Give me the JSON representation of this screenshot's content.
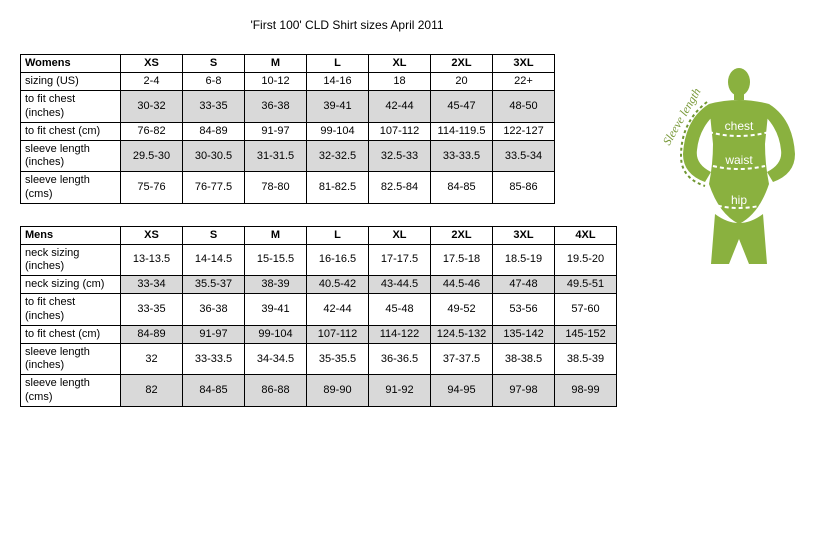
{
  "title": "'First 100' CLD Shirt sizes April 2011",
  "colors": {
    "figure_green": "#8ab13f",
    "figure_green_dark": "#6f9630",
    "shade": "#d9d9d9",
    "text": "#000000"
  },
  "womens": {
    "label": "Womens",
    "sizes": [
      "XS",
      "S",
      "M",
      "L",
      "XL",
      "2XL",
      "3XL"
    ],
    "rows": [
      {
        "label": "sizing (US)",
        "values": [
          "2-4",
          "6-8",
          "10-12",
          "14-16",
          "18",
          "20",
          "22+"
        ]
      },
      {
        "label": "to fit chest (inches)",
        "values": [
          "30-32",
          "33-35",
          "36-38",
          "39-41",
          "42-44",
          "45-47",
          "48-50"
        ]
      },
      {
        "label": "to fit chest (cm)",
        "values": [
          "76-82",
          "84-89",
          "91-97",
          "99-104",
          "107-112",
          "114-119.5",
          "122-127"
        ]
      },
      {
        "label": "sleeve length (inches)",
        "values": [
          "29.5-30",
          "30-30.5",
          "31-31.5",
          "32-32.5",
          "32.5-33",
          "33-33.5",
          "33.5-34"
        ]
      },
      {
        "label": "sleeve length (cms)",
        "values": [
          "75-76",
          "76-77.5",
          "78-80",
          "81-82.5",
          "82.5-84",
          "84-85",
          "85-86"
        ]
      }
    ]
  },
  "mens": {
    "label": "Mens",
    "sizes": [
      "XS",
      "S",
      "M",
      "L",
      "XL",
      "2XL",
      "3XL",
      "4XL"
    ],
    "rows": [
      {
        "label": "neck sizing (inches)",
        "values": [
          "13-13.5",
          "14-14.5",
          "15-15.5",
          "16-16.5",
          "17-17.5",
          "17.5-18",
          "18.5-19",
          "19.5-20"
        ]
      },
      {
        "label": "neck sizing (cm)",
        "values": [
          "33-34",
          "35.5-37",
          "38-39",
          "40.5-42",
          "43-44.5",
          "44.5-46",
          "47-48",
          "49.5-51"
        ]
      },
      {
        "label": "to fit chest (inches)",
        "values": [
          "33-35",
          "36-38",
          "39-41",
          "42-44",
          "45-48",
          "49-52",
          "53-56",
          "57-60"
        ]
      },
      {
        "label": "to fit chest (cm)",
        "values": [
          "84-89",
          "91-97",
          "99-104",
          "107-112",
          "114-122",
          "124.5-132",
          "135-142",
          "145-152"
        ]
      },
      {
        "label": "sleeve length (inches)",
        "values": [
          "32",
          "33-33.5",
          "34-34.5",
          "35-35.5",
          "36-36.5",
          "37-37.5",
          "38-38.5",
          "38.5-39"
        ]
      },
      {
        "label": "sleeve length (cms)",
        "values": [
          "82",
          "84-85",
          "86-88",
          "89-90",
          "91-92",
          "94-95",
          "97-98",
          "98-99"
        ]
      }
    ]
  },
  "figure": {
    "sleeve_label": "Sleeve length",
    "chest_label": "chest",
    "waist_label": "waist",
    "hip_label": "hip"
  }
}
